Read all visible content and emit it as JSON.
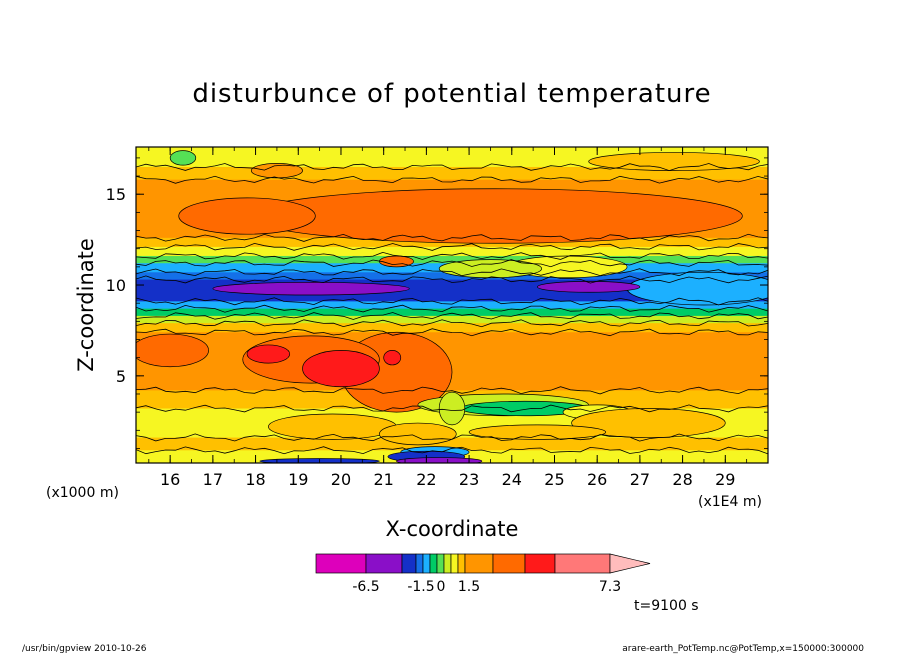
{
  "chart_data": {
    "type": "heatmap",
    "title": "disturbunce of potential temperature",
    "xlabel": "X-coordinate",
    "ylabel": "Z-coordinate",
    "x_unit_left": "(x1000 m)",
    "x_unit_right": "(x1E4 m)",
    "xlim": [
      15.2,
      30.0
    ],
    "ylim": [
      0.2,
      17.6
    ],
    "xticks": [
      "16",
      "17",
      "18",
      "19",
      "20",
      "21",
      "22",
      "23",
      "24",
      "25",
      "26",
      "27",
      "28",
      "29"
    ],
    "yticks": [
      "5",
      "10",
      "15"
    ],
    "colorbar": {
      "labels": [
        "-6.5",
        "-1.5",
        "0",
        "1.5",
        "7.3"
      ],
      "colors": [
        "#dd00bb",
        "#8a0fc8",
        "#1430c8",
        "#1470e8",
        "#1cb0ff",
        "#00cc66",
        "#55e055",
        "#ccee22",
        "#f6f622",
        "#ffc000",
        "#ff9500",
        "#ff6a00",
        "#ff1a1a",
        "#ff7878",
        "#ffbcbc"
      ]
    },
    "bands": [
      {
        "z0": 16.5,
        "z1": 17.6,
        "c": "#f6f622"
      },
      {
        "z0": 15.8,
        "z1": 16.5,
        "c": "#ffc000"
      },
      {
        "z0": 12.6,
        "z1": 15.8,
        "c": "#ff9500"
      },
      {
        "z0": 12.1,
        "z1": 12.6,
        "c": "#ffc000"
      },
      {
        "z0": 11.6,
        "z1": 12.1,
        "c": "#f6f622"
      },
      {
        "z0": 11.2,
        "z1": 11.6,
        "c": "#55e055"
      },
      {
        "z0": 10.7,
        "z1": 11.2,
        "c": "#1cb0ff"
      },
      {
        "z0": 10.3,
        "z1": 10.7,
        "c": "#1470e8"
      },
      {
        "z0": 9.1,
        "z1": 10.3,
        "c": "#1430c8"
      },
      {
        "z0": 8.7,
        "z1": 9.1,
        "c": "#1cb0ff"
      },
      {
        "z0": 8.3,
        "z1": 8.7,
        "c": "#00cc66"
      },
      {
        "z0": 7.9,
        "z1": 8.3,
        "c": "#ccee22"
      },
      {
        "z0": 7.4,
        "z1": 7.9,
        "c": "#ffc000"
      },
      {
        "z0": 4.2,
        "z1": 7.4,
        "c": "#ff9500"
      },
      {
        "z0": 3.2,
        "z1": 4.2,
        "c": "#ffc000"
      },
      {
        "z0": 1.6,
        "z1": 3.2,
        "c": "#f6f622"
      },
      {
        "z0": 0.9,
        "z1": 1.6,
        "c": "#ffc000"
      },
      {
        "z0": 0.2,
        "z1": 0.9,
        "c": "#f6f622"
      }
    ],
    "blobs": [
      {
        "x": 23.6,
        "z": 13.8,
        "rx": 5.8,
        "rz": 1.5,
        "c": "#ff6a00"
      },
      {
        "x": 17.8,
        "z": 13.8,
        "rx": 1.6,
        "rz": 1.0,
        "c": "#ff6a00"
      },
      {
        "x": 18.5,
        "z": 16.3,
        "rx": 0.6,
        "rz": 0.4,
        "c": "#ff9500"
      },
      {
        "x": 16.3,
        "z": 17.0,
        "rx": 0.3,
        "rz": 0.4,
        "c": "#55e055"
      },
      {
        "x": 27.8,
        "z": 16.8,
        "rx": 2.0,
        "rz": 0.5,
        "c": "#ffc000"
      },
      {
        "x": 25.3,
        "z": 11.0,
        "rx": 1.4,
        "rz": 0.6,
        "c": "#f6f622"
      },
      {
        "x": 23.5,
        "z": 10.9,
        "rx": 1.2,
        "rz": 0.5,
        "c": "#ccee22"
      },
      {
        "x": 21.3,
        "z": 11.3,
        "rx": 0.4,
        "rz": 0.3,
        "c": "#ff6a00"
      },
      {
        "x": 28.5,
        "z": 9.8,
        "rx": 1.8,
        "rz": 0.9,
        "c": "#1cb0ff"
      },
      {
        "x": 25.8,
        "z": 9.9,
        "rx": 1.2,
        "rz": 0.3,
        "c": "#8a0fc8"
      },
      {
        "x": 19.3,
        "z": 9.8,
        "rx": 2.3,
        "rz": 0.35,
        "c": "#8a0fc8"
      },
      {
        "x": 16.0,
        "z": 6.4,
        "rx": 0.9,
        "rz": 0.9,
        "c": "#ff6a00"
      },
      {
        "x": 21.3,
        "z": 5.2,
        "rx": 1.3,
        "rz": 2.2,
        "c": "#ff6a00"
      },
      {
        "x": 19.3,
        "z": 5.9,
        "rx": 1.6,
        "rz": 1.3,
        "c": "#ff6a00"
      },
      {
        "x": 20.0,
        "z": 5.4,
        "rx": 0.9,
        "rz": 1.0,
        "c": "#ff1a1a"
      },
      {
        "x": 18.3,
        "z": 6.2,
        "rx": 0.5,
        "rz": 0.5,
        "c": "#ff1a1a"
      },
      {
        "x": 21.2,
        "z": 6.0,
        "rx": 0.2,
        "rz": 0.4,
        "c": "#ff1a1a"
      },
      {
        "x": 23.8,
        "z": 3.4,
        "rx": 2.0,
        "rz": 0.6,
        "c": "#ccee22"
      },
      {
        "x": 24.3,
        "z": 3.2,
        "rx": 1.5,
        "rz": 0.4,
        "c": "#00cc66"
      },
      {
        "x": 26.0,
        "z": 3.0,
        "rx": 0.8,
        "rz": 0.4,
        "c": "#f6f622"
      },
      {
        "x": 22.6,
        "z": 3.2,
        "rx": 0.3,
        "rz": 0.9,
        "c": "#ccee22"
      },
      {
        "x": 19.8,
        "z": 2.2,
        "rx": 1.5,
        "rz": 0.7,
        "c": "#ffc000"
      },
      {
        "x": 21.8,
        "z": 1.8,
        "rx": 0.9,
        "rz": 0.6,
        "c": "#ffc000"
      },
      {
        "x": 27.2,
        "z": 2.4,
        "rx": 1.8,
        "rz": 0.8,
        "c": "#ffc000"
      },
      {
        "x": 24.6,
        "z": 1.9,
        "rx": 1.6,
        "rz": 0.4,
        "c": "#ffc000"
      },
      {
        "x": 22.2,
        "z": 0.8,
        "rx": 0.8,
        "rz": 0.3,
        "c": "#1cb0ff"
      },
      {
        "x": 22.0,
        "z": 0.55,
        "rx": 0.9,
        "rz": 0.3,
        "c": "#1430c8"
      },
      {
        "x": 22.3,
        "z": 0.3,
        "rx": 1.0,
        "rz": 0.2,
        "c": "#8a0fc8"
      },
      {
        "x": 19.5,
        "z": 0.3,
        "rx": 1.4,
        "rz": 0.15,
        "c": "#1430c8"
      }
    ],
    "contour_lines_z": [
      16.5,
      15.8,
      12.6,
      12.1,
      11.6,
      11.2,
      10.7,
      10.3,
      9.1,
      8.7,
      8.3,
      7.9,
      7.4,
      4.2,
      3.2,
      1.6,
      0.9
    ]
  },
  "time_label": "t=9100 s",
  "footer_left": "/usr/bin/gpview   2010-10-26",
  "footer_right": "arare-earth_PotTemp.nc@PotTemp,x=150000:300000"
}
